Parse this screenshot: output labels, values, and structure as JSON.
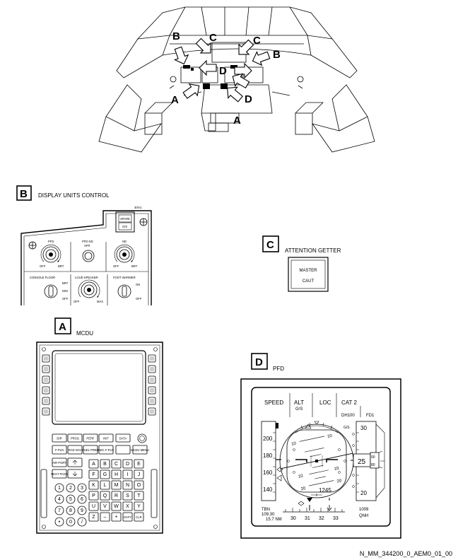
{
  "cockpit": {
    "callouts": [
      "B",
      "C",
      "C",
      "B",
      "D",
      "A",
      "D",
      "A"
    ]
  },
  "sections": {
    "b": {
      "letter": "B",
      "title": "DISPLAY UNITS CONTROL"
    },
    "c": {
      "letter": "C",
      "title": "ATTENTION GETTER"
    },
    "a": {
      "letter": "A",
      "title": "MCDU"
    },
    "d": {
      "letter": "D",
      "title": "PFD"
    }
  },
  "panel_b": {
    "panel_id": "30VU",
    "spare": "SPARE",
    "gs": "G/S",
    "pfd": "PFD",
    "pfd_nd": "PFD ND",
    "xfr": "XFR",
    "nd": "ND",
    "off": "OFF",
    "brt": "BRT",
    "console_floor": "CONSOLE FLOOR",
    "dim": "DIM",
    "loud_speaker": "LOUD SPEAKER",
    "max": "MAX",
    "foot_warmer": "FOOT WARMER",
    "on": "ON"
  },
  "master_caut": {
    "line1": "MASTER",
    "line2": "CAUT"
  },
  "mcdu": {
    "function_keys": [
      [
        "DIR",
        "PROG",
        "PERF",
        "INIT",
        "DATA"
      ],
      [
        "F-PLN",
        "RAD NAV",
        "FUEL PRED",
        "SEC F-PLN",
        "",
        "MCDU MENU"
      ],
      [
        "AIR PORT",
        ""
      ],
      [
        "NEXT PAGE",
        ""
      ]
    ],
    "number_keys": [
      "1",
      "2",
      "3",
      "4",
      "5",
      "6",
      "7",
      "8",
      "9",
      "•",
      "0",
      "/"
    ],
    "alpha_keys": [
      [
        "A",
        "B",
        "C",
        "D",
        "E"
      ],
      [
        "F",
        "G",
        "H",
        "I",
        "J"
      ],
      [
        "K",
        "L",
        "M",
        "N",
        "O"
      ],
      [
        "P",
        "Q",
        "R",
        "S",
        "T"
      ],
      [
        "U",
        "V",
        "W",
        "X",
        "Y"
      ],
      [
        "Z",
        "–",
        "+",
        "OVFY",
        "CLR"
      ]
    ]
  },
  "pfd": {
    "fma": [
      "SPEED",
      "ALT",
      "LOC",
      "CAT 2",
      "G/S",
      "DH100",
      "FD1"
    ],
    "speed_ticks": [
      "200",
      "180",
      "160",
      "140"
    ],
    "pitch_labels": [
      "10",
      "10",
      "10",
      "10",
      "20",
      "20"
    ],
    "altitude": "1245",
    "vs_label": "G/S",
    "alt_ticks": [
      "30",
      "20"
    ],
    "alt_readout": "25",
    "alt_drum": [
      "00",
      "80"
    ],
    "ils_ident": "TBN",
    "ils_freq": "109.30",
    "ils_dist": "15.7 NM",
    "baro": "1009",
    "qnh": "QNH",
    "heading_ticks": [
      "30",
      "31",
      "32",
      "33"
    ]
  },
  "figure_id": "N_MM_344200_0_AEM0_01_00"
}
